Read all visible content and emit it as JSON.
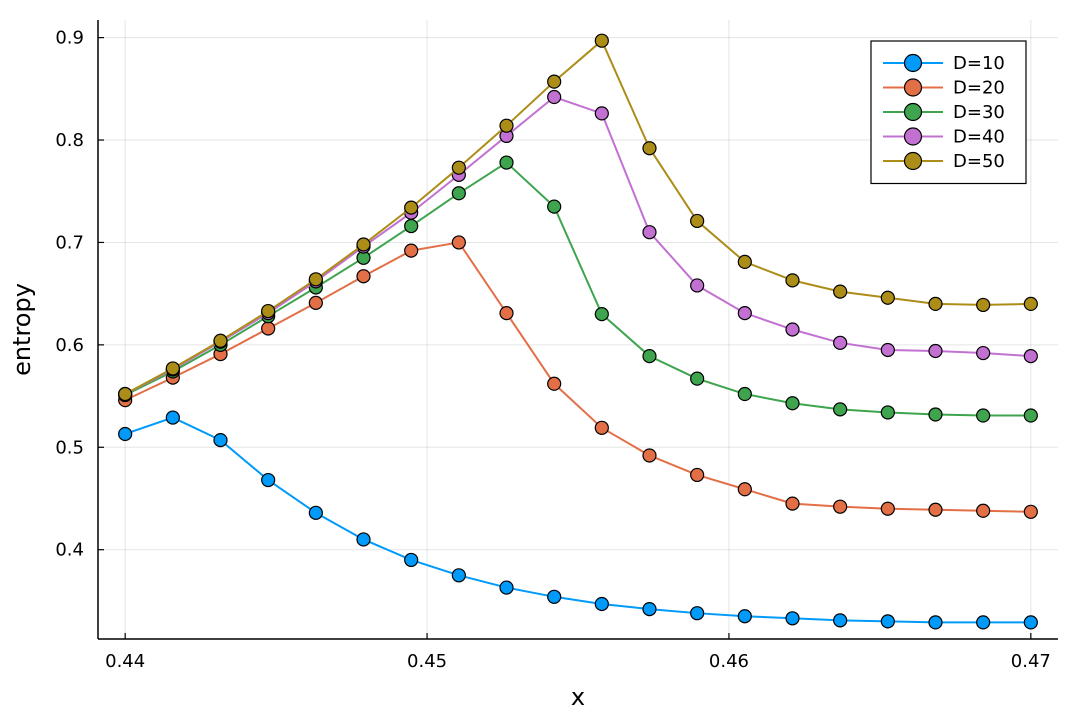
{
  "chart_data": {
    "type": "line",
    "title": "",
    "xlabel": "x",
    "ylabel": "entropy",
    "xlim": [
      0.4391,
      0.4709
    ],
    "ylim": [
      0.3128,
      0.9172
    ],
    "xticks": [
      0.44,
      0.45,
      0.46,
      0.47
    ],
    "xtick_labels": [
      "0.44",
      "0.45",
      "0.46",
      "0.47"
    ],
    "yticks": [
      0.4,
      0.5,
      0.6,
      0.7,
      0.8,
      0.9
    ],
    "ytick_labels": [
      "0.4",
      "0.5",
      "0.6",
      "0.7",
      "0.8",
      "0.9"
    ],
    "grid": true,
    "legend_position": "top-right",
    "x": [
      0.44,
      0.441579,
      0.443158,
      0.444737,
      0.446316,
      0.447895,
      0.449474,
      0.451053,
      0.452632,
      0.454211,
      0.455789,
      0.457368,
      0.458947,
      0.460526,
      0.462105,
      0.463684,
      0.465263,
      0.466842,
      0.468421,
      0.47
    ],
    "series": [
      {
        "name": "D=10",
        "color": "#009AFA",
        "values": [
          0.513,
          0.529,
          0.507,
          0.468,
          0.436,
          0.41,
          0.39,
          0.375,
          0.363,
          0.354,
          0.347,
          0.342,
          0.338,
          0.335,
          0.333,
          0.331,
          0.33,
          0.329,
          0.329,
          0.329
        ]
      },
      {
        "name": "D=20",
        "color": "#E36F47",
        "values": [
          0.546,
          0.568,
          0.591,
          0.616,
          0.641,
          0.667,
          0.692,
          0.7,
          0.631,
          0.562,
          0.519,
          0.492,
          0.473,
          0.459,
          0.445,
          0.442,
          0.44,
          0.439,
          0.438,
          0.437
        ]
      },
      {
        "name": "D=30",
        "color": "#3EA44E",
        "values": [
          0.551,
          0.574,
          0.6,
          0.628,
          0.656,
          0.685,
          0.716,
          0.748,
          0.778,
          0.735,
          0.63,
          0.589,
          0.567,
          0.552,
          0.543,
          0.537,
          0.534,
          0.532,
          0.531,
          0.531
        ]
      },
      {
        "name": "D=40",
        "color": "#C271D2",
        "values": [
          0.552,
          0.576,
          0.603,
          0.631,
          0.662,
          0.696,
          0.729,
          0.766,
          0.804,
          0.842,
          0.826,
          0.71,
          0.658,
          0.631,
          0.615,
          0.602,
          0.595,
          0.594,
          0.592,
          0.589
        ]
      },
      {
        "name": "D=50",
        "color": "#AC8D18",
        "values": [
          0.552,
          0.577,
          0.604,
          0.633,
          0.664,
          0.698,
          0.734,
          0.773,
          0.814,
          0.857,
          0.897,
          0.792,
          0.721,
          0.681,
          0.663,
          0.652,
          0.646,
          0.64,
          0.639,
          0.64
        ]
      }
    ]
  }
}
